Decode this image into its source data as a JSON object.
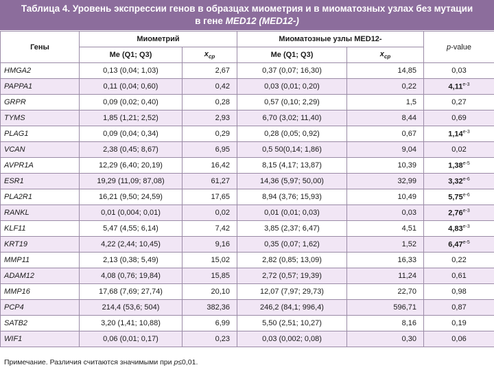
{
  "title": {
    "line1": "Таблица 4. Уровень экспрессии генов в образцах миометрия и в миоматозных узлах без мутации",
    "line2_prefix": "в гене ",
    "line2_gene": "MED12",
    "line2_paren": " (MED12-)"
  },
  "header": {
    "genes": "Гены",
    "myometrium": "Миометрий",
    "nodes": "Миоматозные узлы MED12-",
    "pvalue": "p-value",
    "me_label": "Me (Q1; Q3)",
    "x_label": "x",
    "x_sub": "ср"
  },
  "rows": [
    {
      "gene": "HMGA2",
      "myo_me": "0,13 (0,04; 1,03)",
      "myo_x": "2,67",
      "nod_me": "0,37 (0,07; 16,30)",
      "nod_x": "14,85",
      "p": "0,03",
      "p_sup": "",
      "sig": false
    },
    {
      "gene": "PAPPA1",
      "myo_me": "0,11 (0,04; 0,60)",
      "myo_x": "0,42",
      "nod_me": "0,03 (0,01; 0,20)",
      "nod_x": "0,22",
      "p": "4,11",
      "p_sup": "e-3",
      "sig": true
    },
    {
      "gene": "GRPR",
      "myo_me": "0,09 (0,02; 0,40)",
      "myo_x": "0,28",
      "nod_me": "0,57 (0,10; 2,29)",
      "nod_x": "1,5",
      "p": "0,27",
      "p_sup": "",
      "sig": false
    },
    {
      "gene": "TYMS",
      "myo_me": "1,85 (1,21; 2,52)",
      "myo_x": "2,93",
      "nod_me": "6,70 (3,02; 11,40)",
      "nod_x": "8,44",
      "p": "0,69",
      "p_sup": "",
      "sig": false
    },
    {
      "gene": "PLAG1",
      "myo_me": "0,09 (0,04; 0,34)",
      "myo_x": "0,29",
      "nod_me": "0,28 (0,05; 0,92)",
      "nod_x": "0,67",
      "p": "1,14",
      "p_sup": "e-3",
      "sig": true
    },
    {
      "gene": "VCAN",
      "myo_me": "2,38 (0,45; 8,67)",
      "myo_x": "6,95",
      "nod_me": "0,5 50(0,14; 1,86)",
      "nod_x": "9,04",
      "p": "0,02",
      "p_sup": "",
      "sig": false
    },
    {
      "gene": "AVPR1A",
      "myo_me": "12,29 (6,40; 20,19)",
      "myo_x": "16,42",
      "nod_me": "8,15 (4,17; 13,87)",
      "nod_x": "10,39",
      "p": "1,38",
      "p_sup": "e-5",
      "sig": true
    },
    {
      "gene": "ESR1",
      "myo_me": "19,29 (11,09; 87,08)",
      "myo_x": "61,27",
      "nod_me": "14,36 (5,97; 50,00)",
      "nod_x": "32,99",
      "p": "3,32",
      "p_sup": "e-6",
      "sig": true
    },
    {
      "gene": "PLA2R1",
      "myo_me": "16,21 (9,50; 24,59)",
      "myo_x": "17,65",
      "nod_me": "8,94 (3,76; 15,93)",
      "nod_x": "10,49",
      "p": "5,75",
      "p_sup": "e-6",
      "sig": true
    },
    {
      "gene": "RANKL",
      "myo_me": "0,01 (0,004; 0,01)",
      "myo_x": "0,02",
      "nod_me": "0,01 (0,01; 0,03)",
      "nod_x": "0,03",
      "p": "2,76",
      "p_sup": "e-3",
      "sig": true
    },
    {
      "gene": "KLF11",
      "myo_me": "5,47 (4,55; 6,14)",
      "myo_x": "7,42",
      "nod_me": "3,85 (2,37; 6,47)",
      "nod_x": "4,51",
      "p": "4,83",
      "p_sup": "e-3",
      "sig": true
    },
    {
      "gene": "KRT19",
      "myo_me": "4,22 (2,44; 10,45)",
      "myo_x": "9,16",
      "nod_me": "0,35 (0,07; 1,62)",
      "nod_x": "1,52",
      "p": "6,47",
      "p_sup": "e-5",
      "sig": true
    },
    {
      "gene": "MMP11",
      "myo_me": "2,13 (0,38; 5,49)",
      "myo_x": "15,02",
      "nod_me": "2,82 (0,85; 13,09)",
      "nod_x": "16,33",
      "p": "0,22",
      "p_sup": "",
      "sig": false
    },
    {
      "gene": "ADAM12",
      "myo_me": "4,08 (0,76; 19,84)",
      "myo_x": "15,85",
      "nod_me": "2,72 (0,57; 19,39)",
      "nod_x": "11,24",
      "p": "0,61",
      "p_sup": "",
      "sig": false
    },
    {
      "gene": "MMP16",
      "myo_me": "17,68 (7,69; 27,74)",
      "myo_x": "20,10",
      "nod_me": "12,07 (7,97; 29,73)",
      "nod_x": "22,70",
      "p": "0,98",
      "p_sup": "",
      "sig": false
    },
    {
      "gene": "PCP4",
      "myo_me": "214,4 (53,6; 504)",
      "myo_x": "382,36",
      "nod_me": "246,2 (84,1; 996,4)",
      "nod_x": "596,71",
      "p": "0,87",
      "p_sup": "",
      "sig": false
    },
    {
      "gene": "SATB2",
      "myo_me": "3,20 (1,41; 10,88)",
      "myo_x": "6,99",
      "nod_me": "5,50 (2,51; 10,27)",
      "nod_x": "8,16",
      "p": "0,19",
      "p_sup": "",
      "sig": false
    },
    {
      "gene": "WIF1",
      "myo_me": "0,06 (0,01; 0,17)",
      "myo_x": "0,23",
      "nod_me": "0,03 (0,002; 0,08)",
      "nod_x": "0,30",
      "p": "0,06",
      "p_sup": "",
      "sig": false
    }
  ],
  "note": {
    "prefix": "Примечание. Различия считаются значимыми при ",
    "p": "p",
    "suffix": "≤0,01."
  }
}
